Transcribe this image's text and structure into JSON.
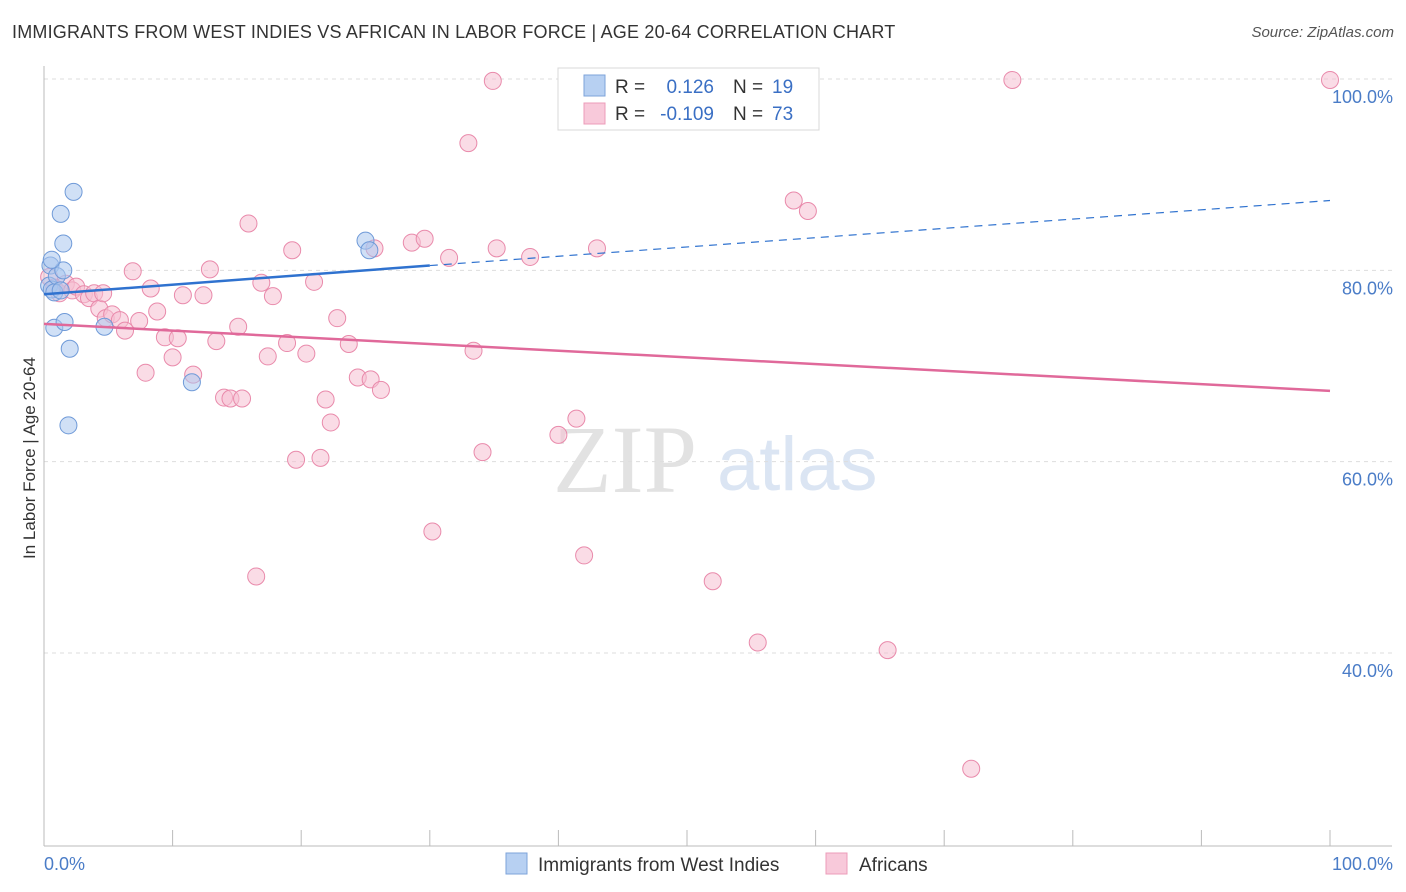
{
  "header": {
    "title": "IMMIGRANTS FROM WEST INDIES VS AFRICAN IN LABOR FORCE | AGE 20-64 CORRELATION CHART",
    "source": "Source: ZipAtlas.com"
  },
  "watermark": {
    "zip": "ZIP",
    "atlas": "atlas"
  },
  "chart_data": {
    "type": "scatter",
    "title": "IMMIGRANTS FROM WEST INDIES VS AFRICAN IN LABOR FORCE | AGE 20-64 CORRELATION CHART",
    "xlabel": "",
    "ylabel": "In Labor Force | Age 20-64",
    "xlim": [
      0,
      100
    ],
    "ylim": [
      20,
      102
    ],
    "x_tick_labels": [
      "0.0%",
      "100.0%"
    ],
    "y_ticks": [
      40,
      60,
      80,
      100
    ],
    "y_tick_labels": [
      "40.0%",
      "60.0%",
      "80.0%",
      "100.0%"
    ],
    "grid": true,
    "legend_position": "top-center",
    "series": [
      {
        "name": "Immigrants from West Indies",
        "color": "#a9c6ee",
        "edge_color": "#6f9ad8",
        "line_color": "#2f72cf",
        "R": "0.126",
        "N": "19",
        "trend": {
          "x0": 0,
          "y0": 77.5,
          "x1": 30,
          "y1": 80.5,
          "dash_to": 100,
          "dash_y": 87.3
        },
        "points": [
          [
            0.4,
            78.4
          ],
          [
            0.5,
            80.5
          ],
          [
            0.6,
            78.0
          ],
          [
            0.8,
            77.7
          ],
          [
            1.0,
            79.4
          ],
          [
            1.3,
            77.9
          ],
          [
            1.5,
            80.0
          ],
          [
            0.8,
            74.0
          ],
          [
            1.6,
            74.6
          ],
          [
            2.0,
            71.8
          ],
          [
            1.9,
            63.8
          ],
          [
            2.3,
            88.2
          ],
          [
            1.3,
            85.9
          ],
          [
            1.5,
            82.8
          ],
          [
            0.6,
            81.1
          ],
          [
            4.7,
            74.1
          ],
          [
            11.5,
            68.3
          ],
          [
            25.0,
            83.1
          ],
          [
            25.3,
            82.1
          ]
        ]
      },
      {
        "name": "Africans",
        "color": "#f5bfd2",
        "edge_color": "#e98aab",
        "line_color": "#e0699a",
        "R": "-0.109",
        "N": "73",
        "trend": {
          "x0": 0,
          "y0": 74.4,
          "x1": 100,
          "y1": 67.4
        },
        "points": [
          [
            0.4,
            79.3
          ],
          [
            0.8,
            78.2
          ],
          [
            1.2,
            77.6
          ],
          [
            1.7,
            78.6
          ],
          [
            2.2,
            77.9
          ],
          [
            2.5,
            78.3
          ],
          [
            3.1,
            77.5
          ],
          [
            3.5,
            77.1
          ],
          [
            3.9,
            77.6
          ],
          [
            4.3,
            76.0
          ],
          [
            4.8,
            75.0
          ],
          [
            5.3,
            75.4
          ],
          [
            5.9,
            74.8
          ],
          [
            6.3,
            73.7
          ],
          [
            6.9,
            79.9
          ],
          [
            7.4,
            74.7
          ],
          [
            7.9,
            69.3
          ],
          [
            8.3,
            78.1
          ],
          [
            8.8,
            75.7
          ],
          [
            9.4,
            73.0
          ],
          [
            10.0,
            70.9
          ],
          [
            10.4,
            72.9
          ],
          [
            10.8,
            77.4
          ],
          [
            11.6,
            69.1
          ],
          [
            12.4,
            77.4
          ],
          [
            12.9,
            80.1
          ],
          [
            13.4,
            72.6
          ],
          [
            14.0,
            66.7
          ],
          [
            14.5,
            66.6
          ],
          [
            15.1,
            74.1
          ],
          [
            15.4,
            66.6
          ],
          [
            15.9,
            84.9
          ],
          [
            16.5,
            48.0
          ],
          [
            16.9,
            78.7
          ],
          [
            17.4,
            71.0
          ],
          [
            17.8,
            77.3
          ],
          [
            18.9,
            72.4
          ],
          [
            19.3,
            82.1
          ],
          [
            19.6,
            60.2
          ],
          [
            20.4,
            71.3
          ],
          [
            21.0,
            78.8
          ],
          [
            21.5,
            60.4
          ],
          [
            21.9,
            66.5
          ],
          [
            22.3,
            64.1
          ],
          [
            22.8,
            75.0
          ],
          [
            23.7,
            72.3
          ],
          [
            24.4,
            68.8
          ],
          [
            25.4,
            68.6
          ],
          [
            25.7,
            82.3
          ],
          [
            26.2,
            67.5
          ],
          [
            28.6,
            82.9
          ],
          [
            29.6,
            83.3
          ],
          [
            30.2,
            52.7
          ],
          [
            31.5,
            81.3
          ],
          [
            33.0,
            93.3
          ],
          [
            33.4,
            71.6
          ],
          [
            34.1,
            61.0
          ],
          [
            35.2,
            82.3
          ],
          [
            37.8,
            81.4
          ],
          [
            40.0,
            62.8
          ],
          [
            41.4,
            64.5
          ],
          [
            42.0,
            50.2
          ],
          [
            43.0,
            82.3
          ],
          [
            52.0,
            47.5
          ],
          [
            55.5,
            41.1
          ],
          [
            58.3,
            87.3
          ],
          [
            59.4,
            86.2
          ],
          [
            65.6,
            40.3
          ],
          [
            72.1,
            27.9
          ],
          [
            75.3,
            99.9
          ],
          [
            100.0,
            99.9
          ],
          [
            34.9,
            99.8
          ],
          [
            4.6,
            77.6
          ]
        ]
      }
    ]
  }
}
